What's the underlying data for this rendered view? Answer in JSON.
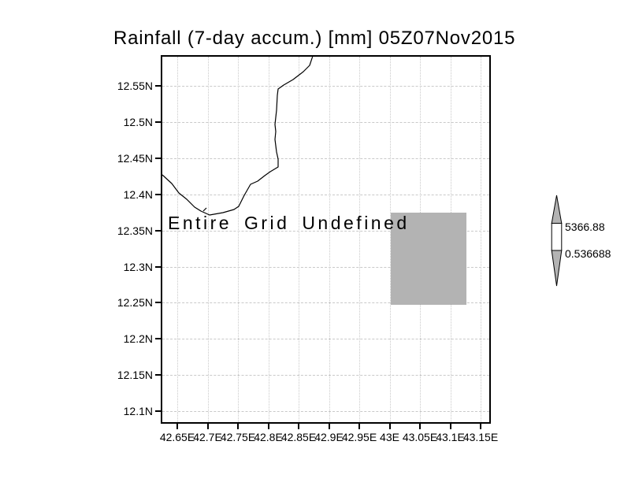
{
  "title": "Rainfall (7-day accum.) [mm] 05Z07Nov2015",
  "plot": {
    "undefined_text": "Entire Grid Undefined",
    "lat_ticks": [
      "12.55N",
      "12.5N",
      "12.45N",
      "12.4N",
      "12.35N",
      "12.3N",
      "12.25N",
      "12.2N",
      "12.15N",
      "12.1N"
    ],
    "lon_ticks": [
      "42.65E",
      "42.7E",
      "42.75E",
      "42.8E",
      "42.85E",
      "42.9E",
      "42.95E",
      "43E",
      "43.05E",
      "43.1E",
      "43.15E"
    ]
  },
  "colorbar": {
    "upper_label": "5366.88",
    "lower_label": "0.536688",
    "triangle_color": "#b3b3b3",
    "box_color": "#ffffff"
  },
  "colors": {
    "background": "#ffffff",
    "frame": "#000000",
    "gridline": "#c9c9c9",
    "undefined_shade": "#b3b3b3",
    "coastline": "#000000",
    "text": "#000000"
  }
}
